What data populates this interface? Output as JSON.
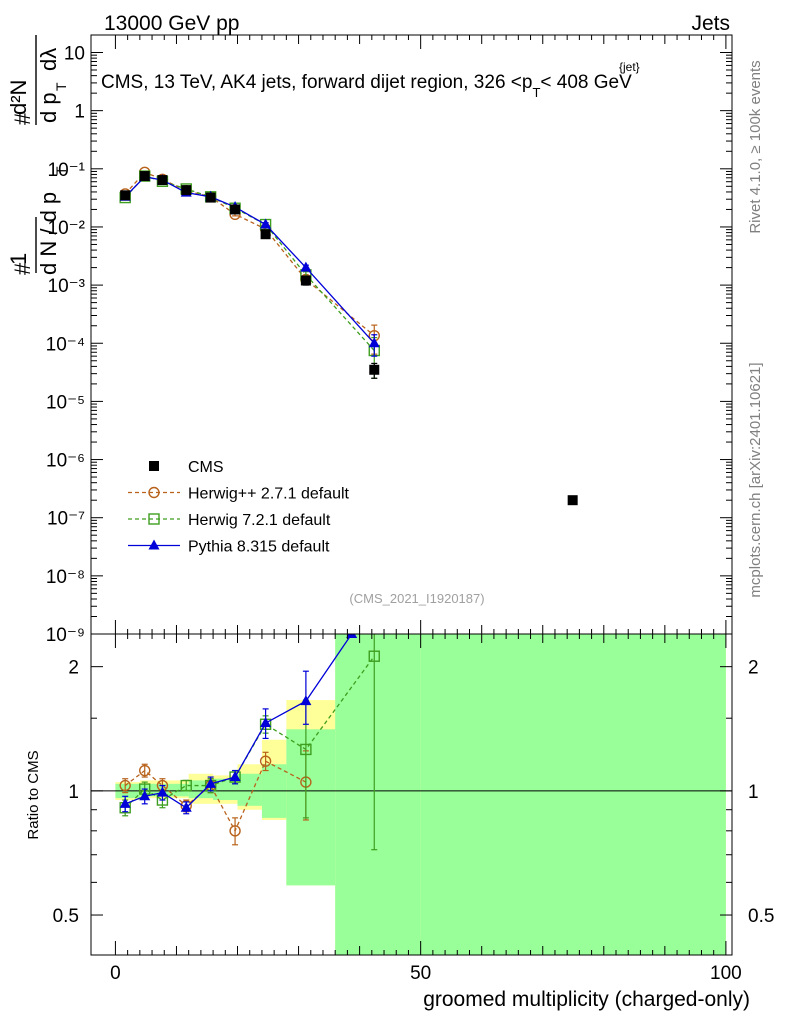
{
  "header": {
    "left": "13000 GeV pp",
    "right": "Jets"
  },
  "title": {
    "main": "CMS, 13 TeV, AK4 jets, forward dijet region, 326 <p",
    "sub": "T",
    "sup": "{jet}",
    "tail": "< 408 GeV"
  },
  "side_labels": {
    "rivet": "Rivet 4.1.0, ≥ 100k events",
    "mcplots": "mcplots.cern.ch [arXiv:2401.10621]"
  },
  "analysis_id": "(CMS_2021_I1920187)",
  "ylabel_main": {
    "hash": "#",
    "one": "1",
    "dN_d": "d N / d p",
    "T": "T",
    "d2N": "d²N",
    "dp_dl": "d p",
    "dl": "dλ"
  },
  "ylabel_ratio": "Ratio to CMS",
  "xlabel": "groomed multiplicity (charged-only)",
  "colors": {
    "cms": "#000000",
    "herwigpp": "#b8621b",
    "herwig7": "#3e9e1f",
    "pythia": "#0000d8",
    "band_inner": "#99ff99",
    "band_outer": "#ffff99"
  },
  "chart_data": [
    {
      "type": "scatter",
      "panel": "main",
      "xlim": [
        -4,
        101
      ],
      "ylim": [
        1e-09,
        20
      ],
      "yscale": "log",
      "ytick_labels": [
        "10⁻⁹",
        "10⁻⁸",
        "10⁻⁷",
        "10⁻⁶",
        "10⁻⁵",
        "10⁻⁴",
        "10⁻³",
        "10⁻²",
        "10⁻¹",
        "1",
        "10"
      ],
      "ytick_values": [
        1e-09,
        1e-08,
        1e-07,
        1e-06,
        1e-05,
        0.0001,
        0.001,
        0.01,
        0.1,
        1,
        10
      ],
      "legend_position": "lower-left",
      "series": [
        {
          "name": "CMS",
          "key": "cms",
          "style": "square-filled",
          "x": [
            1.6,
            4.8,
            7.7,
            11.6,
            15.6,
            19.6,
            24.6,
            31.2,
            42.4,
            74.9
          ],
          "y": [
            0.035,
            0.075,
            0.064,
            0.043,
            0.032,
            0.02,
            0.0075,
            0.0012,
            3.5e-05,
            2e-07
          ],
          "err_lo": [
            0.003,
            0.006,
            0.005,
            0.003,
            0.002,
            0.0015,
            0.0008,
            0.0002,
            1e-05,
            0
          ],
          "err_hi": [
            0.003,
            0.006,
            0.005,
            0.003,
            0.002,
            0.0015,
            0.0008,
            0.0002,
            1e-05,
            0
          ]
        },
        {
          "name": "Herwig++ 2.7.1 default",
          "key": "herwigpp",
          "style": "circle-open-dashed",
          "x": [
            1.6,
            4.8,
            7.7,
            11.6,
            15.6,
            19.6,
            24.6,
            31.2,
            42.4
          ],
          "y": [
            0.037,
            0.087,
            0.066,
            0.042,
            0.033,
            0.0165,
            0.0092,
            0.00125,
            0.000135
          ],
          "err_lo": [
            0.002,
            0.004,
            0.003,
            0.002,
            0.002,
            0.001,
            0.0008,
            0.0002,
            7e-05
          ],
          "err_hi": [
            0.002,
            0.004,
            0.003,
            0.002,
            0.002,
            0.001,
            0.0008,
            0.0002,
            7e-05
          ]
        },
        {
          "name": "Herwig 7.2.1 default",
          "key": "herwig7",
          "style": "square-open-dashed",
          "x": [
            1.6,
            4.8,
            7.7,
            11.6,
            15.6,
            19.6,
            24.6,
            31.2,
            42.4
          ],
          "y": [
            0.032,
            0.075,
            0.061,
            0.045,
            0.033,
            0.021,
            0.011,
            0.0015,
            7.5e-05
          ],
          "err_lo": [
            0.002,
            0.004,
            0.003,
            0.002,
            0.002,
            0.001,
            0.0008,
            0.0002,
            5e-05
          ],
          "err_hi": [
            0.002,
            0.004,
            0.003,
            0.002,
            0.002,
            0.001,
            0.0008,
            0.0002,
            5e-05
          ]
        },
        {
          "name": "Pythia 8.315 default",
          "key": "pythia",
          "style": "triangle-filled-solid",
          "x": [
            1.6,
            4.8,
            7.7,
            11.6,
            15.6,
            19.6,
            24.6,
            31.2,
            42.4
          ],
          "y": [
            0.033,
            0.073,
            0.064,
            0.039,
            0.033,
            0.022,
            0.011,
            0.002,
            0.0001
          ],
          "err_lo": [
            0.002,
            0.004,
            0.003,
            0.002,
            0.002,
            0.001,
            0.0008,
            0.0002,
            4e-05
          ],
          "err_hi": [
            0.002,
            0.004,
            0.003,
            0.002,
            0.002,
            0.001,
            0.0008,
            0.0002,
            4e-05
          ]
        }
      ]
    },
    {
      "type": "scatter",
      "panel": "ratio",
      "xlim": [
        -4,
        101
      ],
      "ylim": [
        0.4,
        2.4
      ],
      "yscale": "log",
      "ytick_labels": [
        "0.5",
        "1",
        "2"
      ],
      "ytick_values": [
        0.5,
        1,
        2
      ],
      "xtick_labels": [
        "0",
        "50",
        "100"
      ],
      "xtick_values": [
        0,
        50,
        100
      ],
      "reference_line": 1,
      "bands": {
        "edges": [
          0,
          4,
          8,
          12,
          16,
          20,
          24,
          28,
          36,
          50,
          100
        ],
        "inner_lo": [
          0.96,
          0.97,
          0.97,
          0.96,
          0.95,
          0.92,
          0.86,
          0.59,
          0.3,
          0.3
        ],
        "inner_hi": [
          1.04,
          1.04,
          1.04,
          1.06,
          1.07,
          1.1,
          1.16,
          1.41,
          2.4,
          2.4
        ],
        "outer_lo": [
          0.95,
          0.96,
          0.96,
          0.93,
          0.93,
          0.9,
          0.85,
          0.59,
          0.3,
          0.3
        ],
        "outer_hi": [
          1.05,
          1.06,
          1.06,
          1.1,
          1.09,
          1.16,
          1.33,
          1.66,
          2.4,
          2.4
        ]
      },
      "series": [
        {
          "name": "Herwig++ 2.7.1 default",
          "key": "herwigpp",
          "style": "circle-open-dashed",
          "x": [
            1.6,
            4.8,
            7.7,
            11.6,
            15.6,
            19.6,
            24.6,
            31.2
          ],
          "y": [
            1.03,
            1.12,
            1.03,
            0.92,
            1.03,
            0.8,
            1.18,
            1.05
          ],
          "err_lo": [
            0.04,
            0.04,
            0.04,
            0.03,
            0.04,
            0.06,
            0.06,
            0.2
          ],
          "err_hi": [
            0.04,
            0.04,
            0.04,
            0.03,
            0.04,
            0.06,
            0.06,
            0.2
          ]
        },
        {
          "name": "Herwig 7.2.1 default",
          "key": "herwig7",
          "style": "square-open-dashed",
          "x": [
            1.6,
            4.8,
            7.7,
            11.6,
            15.6,
            19.6,
            24.6,
            31.2,
            42.4
          ],
          "y": [
            0.91,
            1.01,
            0.95,
            1.03,
            1.03,
            1.08,
            1.45,
            1.26,
            2.12
          ],
          "err_lo": [
            0.04,
            0.04,
            0.04,
            0.03,
            0.04,
            0.04,
            0.07,
            0.4,
            1.4
          ],
          "err_hi": [
            0.04,
            0.04,
            0.04,
            0.03,
            0.04,
            0.04,
            0.07,
            0.4,
            1.4
          ]
        },
        {
          "name": "Pythia 8.315 default",
          "key": "pythia",
          "style": "triangle-filled-solid",
          "x": [
            1.6,
            4.8,
            7.7,
            11.6,
            15.6,
            19.6,
            24.6,
            31.2,
            38.7
          ],
          "y": [
            0.93,
            0.97,
            0.99,
            0.91,
            1.04,
            1.08,
            1.46,
            1.65,
            2.4
          ],
          "err_lo": [
            0.04,
            0.04,
            0.04,
            0.03,
            0.04,
            0.04,
            0.12,
            0.2,
            0
          ],
          "err_hi": [
            0.04,
            0.04,
            0.04,
            0.03,
            0.04,
            0.04,
            0.12,
            0.3,
            0
          ]
        }
      ]
    }
  ]
}
